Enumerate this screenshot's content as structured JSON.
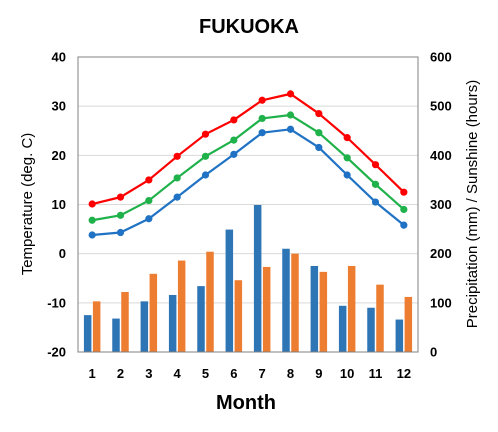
{
  "chart_data": {
    "type": "bar",
    "title": "FUKUOKA",
    "xlabel": "Month",
    "ylabel_left": "Temperature (deg. C)",
    "ylabel_right": "Precipitation (mm) / Sunshine (hours)",
    "categories": [
      "1",
      "2",
      "3",
      "4",
      "5",
      "6",
      "7",
      "8",
      "9",
      "10",
      "11",
      "12"
    ],
    "y_left": {
      "lim": [
        -20,
        40
      ],
      "ticks": [
        "-20",
        "-10",
        "0",
        "10",
        "20",
        "30",
        "40"
      ]
    },
    "y_right": {
      "lim": [
        0,
        600
      ],
      "ticks": [
        "0",
        "100",
        "200",
        "300",
        "400",
        "500",
        "600"
      ]
    },
    "grid": true,
    "bar_series": [
      {
        "axis": "right",
        "color": "#2e75b6",
        "values": [
          75,
          68,
          103,
          116,
          134,
          249,
          299,
          210,
          175,
          94,
          90,
          66
        ]
      },
      {
        "axis": "right",
        "color": "#ed7d31",
        "values": [
          103,
          122,
          159,
          186,
          204,
          146,
          173,
          200,
          163,
          175,
          137,
          112
        ]
      }
    ],
    "line_series": [
      {
        "axis": "left",
        "color": "#ff0000",
        "values": [
          10.1,
          11.5,
          15.0,
          19.8,
          24.3,
          27.2,
          31.2,
          32.5,
          28.5,
          23.6,
          18.1,
          12.5
        ]
      },
      {
        "axis": "left",
        "color": "#1fb14a",
        "values": [
          6.8,
          7.8,
          10.8,
          15.4,
          19.8,
          23.1,
          27.5,
          28.2,
          24.6,
          19.5,
          14.1,
          9.0
        ]
      },
      {
        "axis": "left",
        "color": "#1f72c4",
        "values": [
          3.8,
          4.3,
          7.1,
          11.5,
          16.0,
          20.2,
          24.6,
          25.3,
          21.6,
          16.0,
          10.5,
          5.8
        ]
      }
    ]
  }
}
